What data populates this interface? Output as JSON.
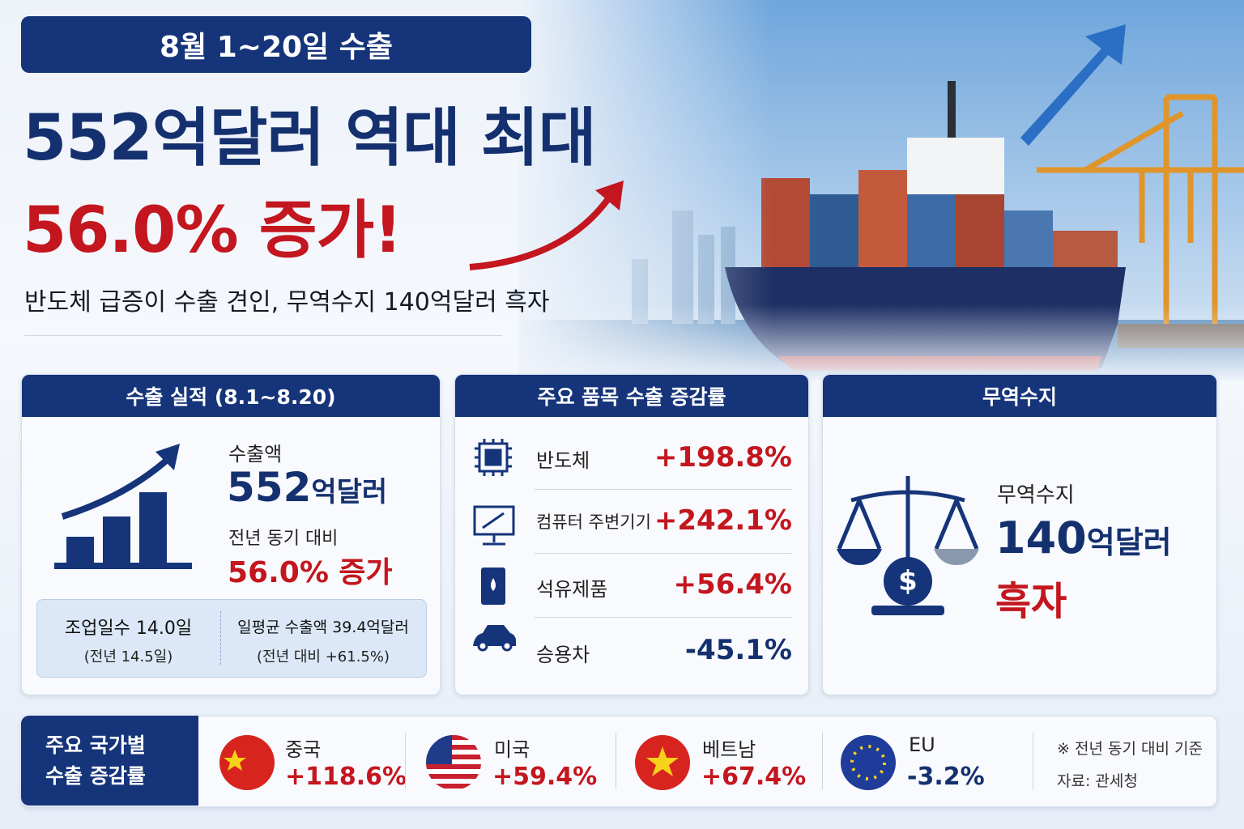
{
  "header": {
    "badge": "8월 1~20일 수출",
    "headline": "552억달러 역대 최대",
    "highlight": "56.0% 증가!",
    "subtitle": "반도체 급증이 수출 견인, 무역수지 140억달러 흑자"
  },
  "export_card": {
    "title": "수출 실적 (8.1~8.20)",
    "amount_label": "수출액",
    "amount": "552",
    "amount_unit": "억달러",
    "compare_label": "전년 동기 대비",
    "change": "56.0% 증가",
    "stats": [
      {
        "label": "조업일수 14.0일",
        "note": "(전년 14.5일)"
      },
      {
        "label": "일평균 수출액 39.4억달러",
        "note": "(전년 대비 +61.5%)"
      }
    ]
  },
  "items_card": {
    "title": "주요 품목 수출 증감률",
    "rows": [
      {
        "name": "반도체",
        "value": "+198.8%"
      },
      {
        "name": "컴퓨터 주변기기",
        "value": "+242.1%"
      },
      {
        "name": "석유제품",
        "value": "+56.4%"
      },
      {
        "name": "승용차",
        "value": "-45.1%"
      }
    ]
  },
  "balance_card": {
    "title": "무역수지",
    "label": "무역수지",
    "amount": "140",
    "unit": "억달러",
    "status": "흑자"
  },
  "countries": {
    "title_lines": [
      "주요 국가별",
      "수출 증감률"
    ],
    "items": [
      {
        "name": "중국",
        "value": "+118.6%"
      },
      {
        "name": "미국",
        "value": "+59.4%"
      },
      {
        "name": "베트남",
        "value": "+67.4%"
      },
      {
        "name": "EU",
        "value": "-3.2%"
      }
    ],
    "note": "※ 전년 동기 대비 기준",
    "source": "자료: 관세청"
  }
}
